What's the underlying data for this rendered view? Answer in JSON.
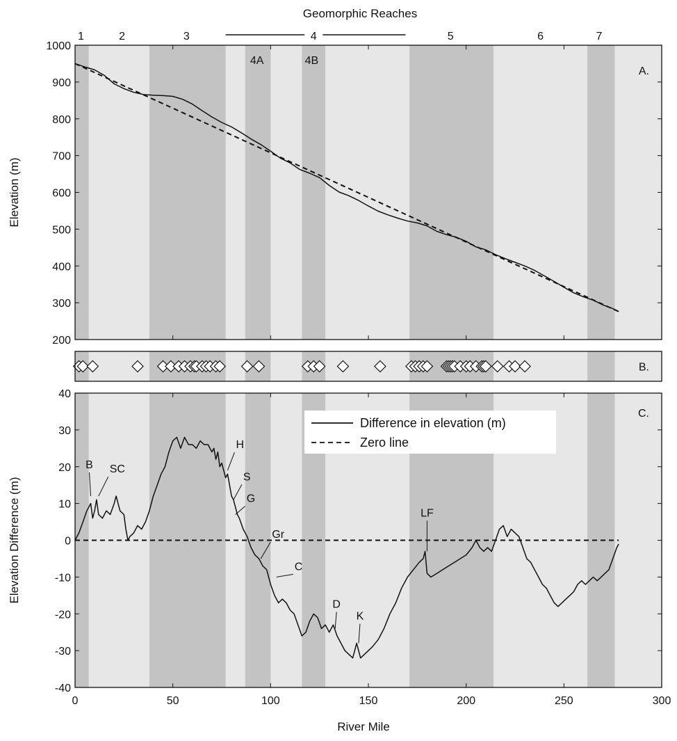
{
  "figure": {
    "top_title": "Geomorphic Reaches",
    "x_axis_label": "River Mile",
    "x_ticks": [
      "0",
      "50",
      "100",
      "150",
      "200",
      "250",
      "300"
    ],
    "colors": {
      "light_band": "#e7e7e7",
      "dark_band": "#c3c3c3",
      "line": "#111111",
      "marker_fill": "#ffffff"
    }
  },
  "reaches": {
    "labels": [
      {
        "text": "1",
        "mile": 3
      },
      {
        "text": "2",
        "mile": 24
      },
      {
        "text": "3",
        "mile": 57
      },
      {
        "text": "4",
        "mile": 122
      },
      {
        "text": "5",
        "mile": 192
      },
      {
        "text": "6",
        "mile": 238
      },
      {
        "text": "7",
        "mile": 268
      }
    ],
    "sub_labels": [
      {
        "text": "4A",
        "mile": 93
      },
      {
        "text": "4B",
        "mile": 121
      }
    ],
    "reach4_span": [
      77,
      169
    ],
    "dark_bands": [
      [
        0,
        7
      ],
      [
        38,
        77
      ],
      [
        87,
        100
      ],
      [
        116,
        128
      ],
      [
        171,
        214
      ],
      [
        262,
        276
      ]
    ],
    "x_max_shade": 300
  },
  "chart_data": [
    {
      "type": "line",
      "panel_label": "A.",
      "ylabel": "Elevation (m)",
      "xlabel": "",
      "xlim": [
        0,
        300
      ],
      "ylim": [
        200,
        1000
      ],
      "y_ticks": [
        "200",
        "300",
        "400",
        "500",
        "600",
        "700",
        "800",
        "900",
        "1000"
      ],
      "grid": false,
      "series": [
        {
          "style": "solid",
          "x": [
            0,
            5,
            10,
            15,
            20,
            25,
            30,
            35,
            40,
            45,
            50,
            55,
            60,
            65,
            70,
            75,
            80,
            85,
            90,
            95,
            100,
            105,
            110,
            115,
            120,
            125,
            130,
            135,
            140,
            145,
            150,
            155,
            160,
            165,
            170,
            175,
            180,
            185,
            190,
            195,
            200,
            205,
            210,
            215,
            220,
            225,
            230,
            235,
            240,
            245,
            250,
            255,
            260,
            265,
            270,
            275,
            278
          ],
          "values": [
            950,
            941,
            933,
            918,
            895,
            882,
            872,
            866,
            864,
            863,
            861,
            853,
            840,
            822,
            805,
            790,
            778,
            762,
            745,
            730,
            712,
            693,
            680,
            662,
            652,
            640,
            619,
            601,
            591,
            578,
            563,
            549,
            539,
            530,
            522,
            517,
            509,
            494,
            485,
            478,
            467,
            452,
            444,
            431,
            420,
            410,
            400,
            388,
            373,
            358,
            342,
            327,
            316,
            307,
            294,
            284,
            276
          ]
        },
        {
          "style": "dashed",
          "x": [
            0,
            278
          ],
          "values": [
            950,
            276
          ]
        }
      ]
    },
    {
      "type": "scatter",
      "panel_label": "B.",
      "marker": "diamond",
      "x": [
        2,
        4,
        9,
        32,
        45,
        49,
        53,
        56,
        59,
        61,
        62,
        65,
        67,
        69,
        72,
        74,
        88,
        94,
        119,
        122,
        125,
        137,
        156,
        172,
        174,
        176,
        178,
        180,
        190,
        191,
        192,
        193,
        194,
        197,
        200,
        202,
        205,
        208,
        209,
        210,
        216,
        222,
        225,
        230
      ]
    },
    {
      "type": "line",
      "panel_label": "C.",
      "ylabel": "Elevation Difference (m)",
      "xlabel": "River Mile",
      "xlim": [
        0,
        300
      ],
      "ylim": [
        -40,
        40
      ],
      "y_ticks": [
        "-40",
        "-30",
        "-20",
        "-10",
        "0",
        "10",
        "20",
        "30",
        "40"
      ],
      "x_ticks": [
        "0",
        "50",
        "100",
        "150",
        "200",
        "250",
        "300"
      ],
      "grid": false,
      "legend": {
        "position": "top-right",
        "entries": [
          "Difference in elevation (m)",
          "Zero line"
        ]
      },
      "series": [
        {
          "name": "Difference in elevation (m)",
          "style": "solid",
          "x": [
            0,
            2,
            4,
            6,
            8,
            9,
            10,
            11,
            12,
            14,
            16,
            18,
            20,
            21,
            23,
            25,
            26,
            27,
            28,
            30,
            32,
            34,
            36,
            38,
            40,
            42,
            44,
            46,
            48,
            50,
            52,
            54,
            56,
            58,
            60,
            62,
            64,
            66,
            68,
            70,
            71,
            72,
            73,
            74,
            75,
            76,
            77,
            78,
            79,
            80,
            81,
            82,
            83,
            84,
            86,
            88,
            90,
            92,
            94,
            96,
            98,
            100,
            102,
            104,
            106,
            108,
            110,
            112,
            114,
            116,
            118,
            120,
            122,
            124,
            126,
            128,
            130,
            132,
            134,
            136,
            138,
            140,
            142,
            144,
            146,
            148,
            150,
            152,
            155,
            158,
            161,
            164,
            167,
            170,
            173,
            176,
            178,
            179,
            180,
            182,
            185,
            188,
            191,
            194,
            197,
            200,
            203,
            205,
            207,
            209,
            211,
            213,
            215,
            217,
            219,
            221,
            223,
            225,
            227,
            229,
            231,
            233,
            235,
            237,
            239,
            241,
            243,
            245,
            247,
            249,
            251,
            253,
            255,
            257,
            259,
            261,
            263,
            265,
            267,
            269,
            271,
            273,
            275,
            277,
            278
          ],
          "values": [
            0,
            2,
            5,
            8,
            10,
            6,
            8,
            11,
            7,
            6,
            8,
            7,
            10,
            12,
            8,
            7,
            3,
            0,
            1,
            2,
            4,
            3,
            5,
            8,
            12,
            15,
            18,
            20,
            24,
            27,
            28,
            25,
            28,
            26,
            26,
            25,
            27,
            26,
            26,
            24,
            25,
            22,
            24,
            20,
            21,
            19,
            17,
            18,
            15,
            12,
            11,
            9,
            7,
            6,
            3,
            1,
            -2,
            -4,
            -5,
            -7,
            -8,
            -12,
            -15,
            -17,
            -16,
            -17,
            -19,
            -20,
            -23,
            -26,
            -25,
            -22,
            -20,
            -21,
            -24,
            -23,
            -25,
            -23,
            -26,
            -28,
            -30,
            -31,
            -32,
            -28,
            -32,
            -31,
            -30,
            -29,
            -27,
            -24,
            -20,
            -17,
            -13,
            -10,
            -8,
            -6,
            -5,
            -3,
            -9,
            -10,
            -9,
            -8,
            -7,
            -6,
            -5,
            -4,
            -2,
            0,
            -2,
            -3,
            -2,
            -3,
            0,
            3,
            4,
            1,
            3,
            2,
            1,
            -2,
            -5,
            -6,
            -8,
            -10,
            -12,
            -13,
            -15,
            -17,
            -18,
            -17,
            -16,
            -15,
            -14,
            -12,
            -11,
            -12,
            -11,
            -10,
            -11,
            -10,
            -9,
            -8,
            -5,
            -2,
            -1
          ]
        },
        {
          "name": "Zero line",
          "style": "dashed",
          "x": [
            0,
            278
          ],
          "values": [
            0,
            0
          ]
        }
      ],
      "annotations": [
        {
          "text": "B",
          "x": 8,
          "y": 12
        },
        {
          "text": "SC",
          "x": 12,
          "y": 12
        },
        {
          "text": "H",
          "x": 78,
          "y": 19
        },
        {
          "text": "S",
          "x": 81,
          "y": 11
        },
        {
          "text": "G",
          "x": 82,
          "y": 7
        },
        {
          "text": "Gr",
          "x": 95,
          "y": -5
        },
        {
          "text": "C",
          "x": 103,
          "y": -10
        },
        {
          "text": "D",
          "x": 133,
          "y": -24
        },
        {
          "text": "K",
          "x": 145,
          "y": -28
        },
        {
          "text": "LF",
          "x": 180,
          "y": -3
        }
      ]
    }
  ]
}
